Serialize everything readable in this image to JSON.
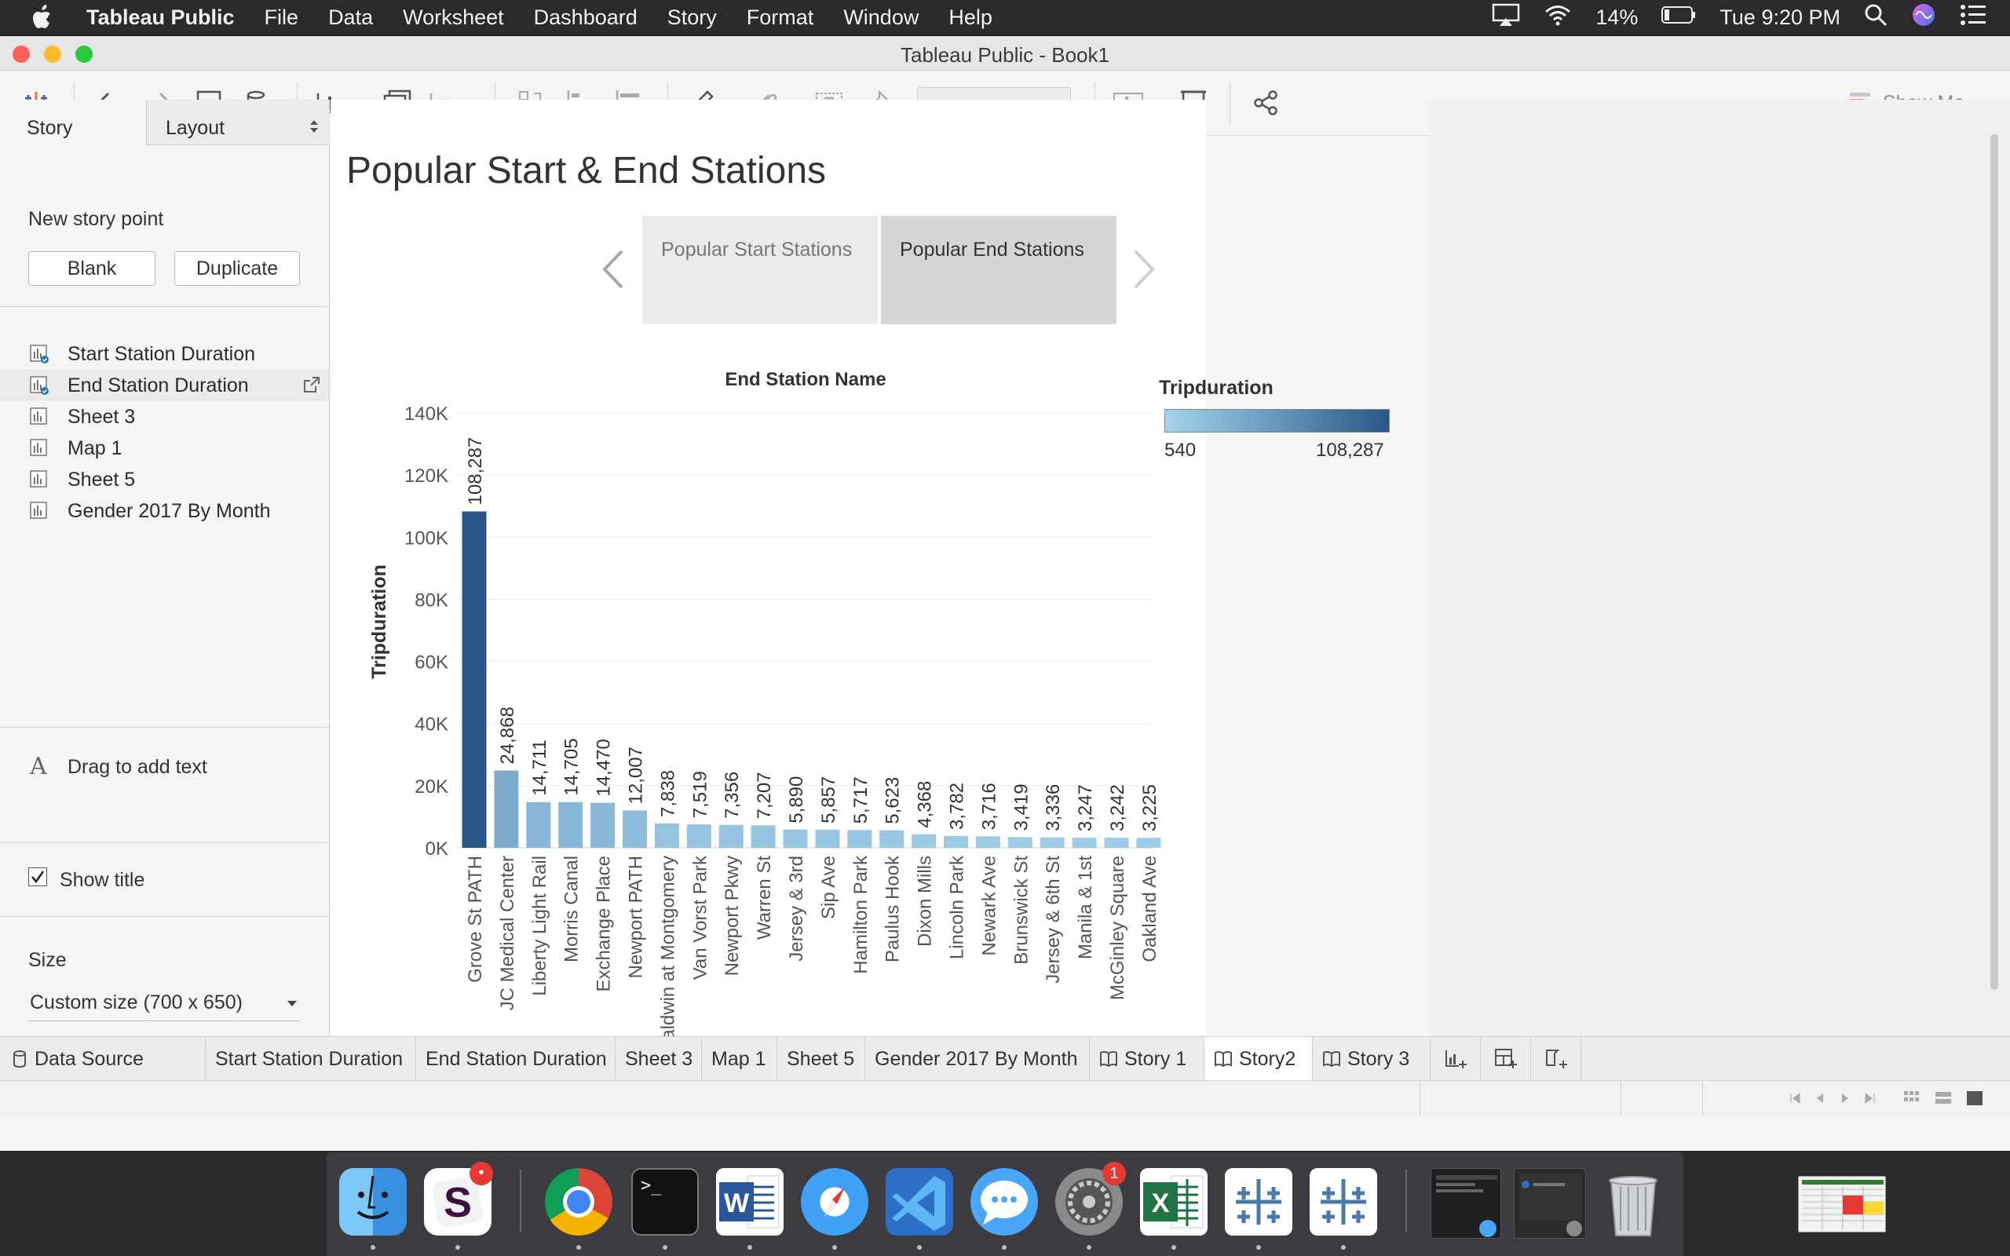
{
  "menubar": {
    "app_name": "Tableau Public",
    "items": [
      "File",
      "Data",
      "Worksheet",
      "Dashboard",
      "Story",
      "Format",
      "Window",
      "Help"
    ],
    "battery": "14%",
    "clock": "Tue 9:20 PM"
  },
  "window": {
    "title": "Tableau Public - Book1",
    "show_me": "Show Me"
  },
  "left_pane": {
    "tabs": [
      "Story",
      "Layout"
    ],
    "new_story_point": "New story point",
    "blank_button": "Blank",
    "duplicate_button": "Duplicate",
    "sheets": [
      "Start Station Duration",
      "End Station Duration",
      "Sheet 3",
      "Map 1",
      "Sheet 5",
      "Gender 2017 By Month"
    ],
    "drag_text": "Drag to add text",
    "show_title_label": "Show title",
    "show_title_checked": true,
    "size_label": "Size",
    "size_value": "Custom size (700 x 650)"
  },
  "story": {
    "title": "Popular Start & End Stations",
    "points": [
      "Popular Start Stations",
      "Popular End Stations"
    ],
    "active_point": 1
  },
  "legend": {
    "title": "Tripduration",
    "min": "540",
    "max": "108,287",
    "colors": [
      "#a6d3ee",
      "#2a5788"
    ]
  },
  "chart_data": {
    "type": "bar",
    "title": "End Station Name",
    "ylabel": "Tripduration",
    "xlabel": "",
    "ylim": [
      0,
      140000
    ],
    "yticks": [
      0,
      20000,
      40000,
      60000,
      80000,
      100000,
      120000,
      140000
    ],
    "ytick_labels": [
      "0K",
      "20K",
      "40K",
      "60K",
      "80K",
      "100K",
      "120K",
      "140K"
    ],
    "categories": [
      "Grove St PATH",
      "JC Medical Center",
      "Liberty Light Rail",
      "Morris Canal",
      "Exchange Place",
      "Newport PATH",
      "Baldwin at Montgomery",
      "Van Vorst Park",
      "Newport Pkwy",
      "Warren St",
      "Jersey & 3rd",
      "Sip Ave",
      "Hamilton Park",
      "Paulus Hook",
      "Dixon Mills",
      "Lincoln Park",
      "Newark Ave",
      "Brunswick St",
      "Jersey & 6th St",
      "Manila & 1st",
      "McGinley Square",
      "Oakland Ave"
    ],
    "values": [
      108287,
      24868,
      14711,
      14705,
      14470,
      12007,
      7838,
      7519,
      7356,
      7207,
      5890,
      5857,
      5717,
      5623,
      4368,
      3782,
      3716,
      3419,
      3336,
      3247,
      3242,
      3225
    ],
    "value_labels": [
      "108,287",
      "24,868",
      "14,711",
      "14,705",
      "14,470",
      "12,007",
      "7,838",
      "7,519",
      "7,356",
      "7,207",
      "5,890",
      "5,857",
      "5,717",
      "5,623",
      "4,368",
      "3,782",
      "3,716",
      "3,419",
      "3,336",
      "3,247",
      "3,242",
      "3,225"
    ],
    "color_range": [
      540,
      108287
    ]
  },
  "bottom_tabs": [
    "Data Source",
    "Start Station Duration",
    "End Station Duration",
    "Sheet 3",
    "Map 1",
    "Sheet 5",
    "Gender 2017 By Month",
    "Story 1",
    "Story2",
    "Story 3"
  ],
  "active_bottom_tab": "Story2",
  "dock": {
    "slack_badge": "•",
    "prefs_badge": "1",
    "terminal_prompt": ">_"
  }
}
